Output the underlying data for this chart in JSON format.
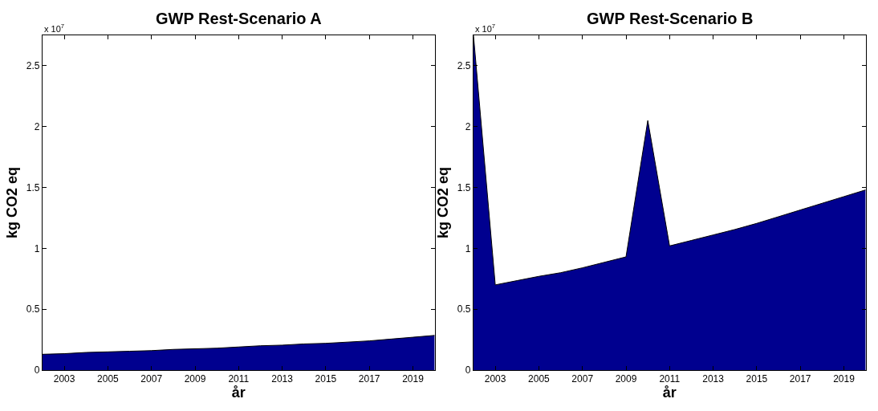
{
  "chart_data": [
    {
      "type": "area",
      "title": "GWP Rest-Scenario A",
      "xlabel": "år",
      "ylabel": "kg CO2 eq",
      "annotations": [
        "x 10$^{7}$"
      ],
      "x": [
        2002,
        2003,
        2004,
        2005,
        2006,
        2007,
        2008,
        2009,
        2010,
        2011,
        2012,
        2013,
        2014,
        2015,
        2016,
        2017,
        2018,
        2019,
        2020
      ],
      "series": [
        {
          "color": "#00008f",
          "values": [
            0.13,
            0.135,
            0.145,
            0.15,
            0.155,
            0.16,
            0.17,
            0.175,
            0.18,
            0.19,
            0.2,
            0.205,
            0.215,
            0.22,
            0.23,
            0.24,
            0.255,
            0.27,
            0.285
          ]
        }
      ],
      "xlim": [
        2002,
        2020
      ],
      "xticks": [
        2003,
        2005,
        2007,
        2009,
        2011,
        2013,
        2015,
        2017,
        2019
      ],
      "ylim": [
        0,
        2.75
      ],
      "yticks": [
        0,
        0.5,
        1,
        1.5,
        2,
        2.5
      ]
    },
    {
      "type": "area",
      "title": "GWP Rest-Scenario B",
      "xlabel": "år",
      "ylabel": "kg CO2 eq",
      "annotations": [
        "x 10$^{7}$"
      ],
      "x": [
        2002,
        2003,
        2004,
        2005,
        2006,
        2007,
        2008,
        2009,
        2010,
        2011,
        2012,
        2013,
        2014,
        2015,
        2016,
        2017,
        2018,
        2019,
        2020
      ],
      "series": [
        {
          "color": "#00008f",
          "values": [
            2.75,
            0.7,
            0.735,
            0.77,
            0.8,
            0.84,
            0.885,
            0.93,
            2.05,
            1.02,
            1.065,
            1.11,
            1.155,
            1.205,
            1.26,
            1.315,
            1.37,
            1.425,
            1.48
          ]
        }
      ],
      "xlim": [
        2002,
        2020
      ],
      "xticks": [
        2003,
        2005,
        2007,
        2009,
        2011,
        2013,
        2015,
        2017,
        2019
      ],
      "ylim": [
        0,
        2.75
      ],
      "yticks": [
        0,
        0.5,
        1,
        1.5,
        2,
        2.5
      ]
    }
  ]
}
